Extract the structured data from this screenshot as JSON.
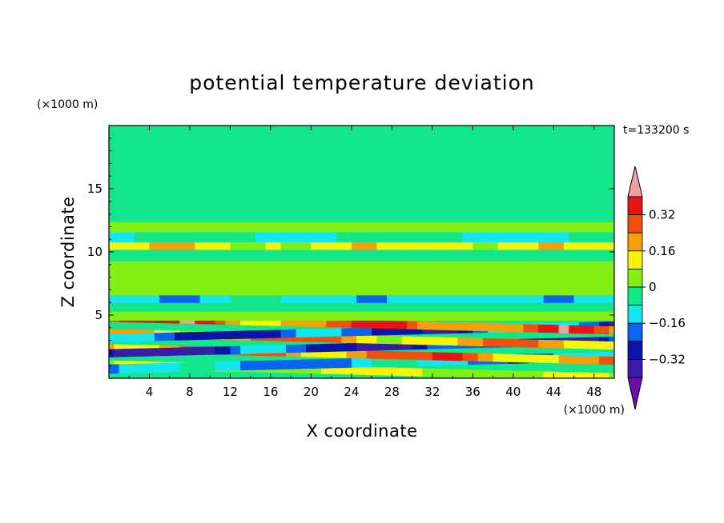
{
  "chart_data": {
    "type": "heatmap",
    "title": "potential temperature deviation",
    "xlabel": "X coordinate",
    "ylabel": "Z coordinate",
    "x_unit": "(×1000 m)",
    "y_unit": "(×1000 m)",
    "time_label": "t=133200 s",
    "xlim": [
      0,
      50
    ],
    "ylim": [
      0,
      20
    ],
    "x_ticks": [
      4,
      8,
      12,
      16,
      20,
      24,
      28,
      32,
      36,
      40,
      44,
      48
    ],
    "y_ticks": [
      5,
      10,
      15
    ],
    "colorbar": {
      "levels": [
        -0.4,
        -0.32,
        -0.24,
        -0.16,
        -0.08,
        0,
        0.08,
        0.16,
        0.24,
        0.32,
        0.4
      ],
      "colors": [
        "#6a0dad",
        "#3a1aa8",
        "#0a14a8",
        "#0a64f0",
        "#14e6f0",
        "#14e68c",
        "#82f014",
        "#f5f50a",
        "#f5a00a",
        "#f0500a",
        "#e61414",
        "#f0a0a0"
      ],
      "tick_labels": [
        "0.32",
        "0.16",
        "0",
        "−0.16",
        "−0.32"
      ],
      "tick_values": [
        0.32,
        0.16,
        0,
        -0.16,
        -0.32
      ]
    },
    "bands": [
      {
        "z": [
          0.3,
          0.9
        ],
        "value": 0.1
      },
      {
        "z": [
          0.9,
          1.6
        ],
        "value": -0.2
      },
      {
        "z": [
          1.6,
          2.2
        ],
        "value": 0.3
      },
      {
        "z": [
          2.2,
          2.8
        ],
        "value": -0.35
      },
      {
        "z": [
          2.8,
          3.4
        ],
        "value": 0.25
      },
      {
        "z": [
          3.4,
          4.0
        ],
        "value": -0.3
      },
      {
        "z": [
          4.0,
          4.6
        ],
        "value": 0.35
      },
      {
        "z": [
          4.6,
          5.3
        ],
        "value": 0.05
      },
      {
        "z": [
          5.3,
          6.0
        ],
        "value": -0.05
      },
      {
        "z": [
          6.0,
          6.6
        ],
        "value": -0.15
      },
      {
        "z": [
          6.6,
          9.3
        ],
        "value": 0.05
      },
      {
        "z": [
          9.3,
          10.2
        ],
        "value": -0.05
      },
      {
        "z": [
          10.2,
          10.8
        ],
        "value": 0.15
      },
      {
        "z": [
          10.8,
          11.6
        ],
        "value": -0.1
      },
      {
        "z": [
          11.6,
          12.4
        ],
        "value": 0.05
      },
      {
        "z": [
          12.4,
          20.0
        ],
        "value": -0.04
      }
    ]
  }
}
